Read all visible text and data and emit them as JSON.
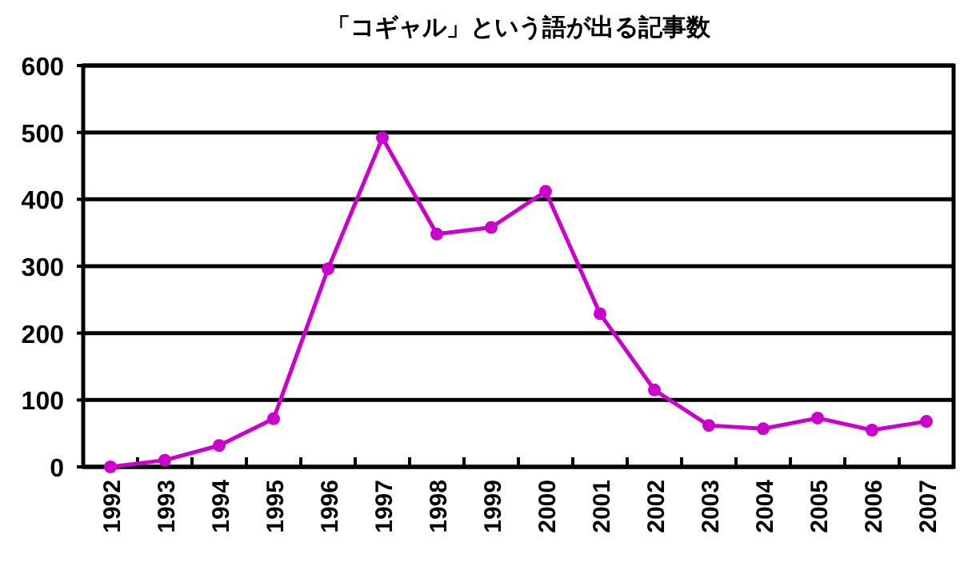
{
  "chart_data": {
    "type": "line",
    "title": "「コギャル」という語が出る記事数",
    "categories": [
      "1992",
      "1993",
      "1994",
      "1995",
      "1996",
      "1997",
      "1998",
      "1999",
      "2000",
      "2001",
      "2002",
      "2003",
      "2004",
      "2005",
      "2006",
      "2007"
    ],
    "series": [
      {
        "color": "#cc00cc",
        "values": [
          0,
          10,
          32,
          72,
          296,
          492,
          348,
          358,
          412,
          229,
          115,
          62,
          57,
          73,
          55,
          68
        ]
      }
    ],
    "ylim": [
      0,
      600
    ],
    "yticks": [
      0,
      100,
      200,
      300,
      400,
      500,
      600
    ],
    "grid": "y",
    "marker": "circle"
  }
}
